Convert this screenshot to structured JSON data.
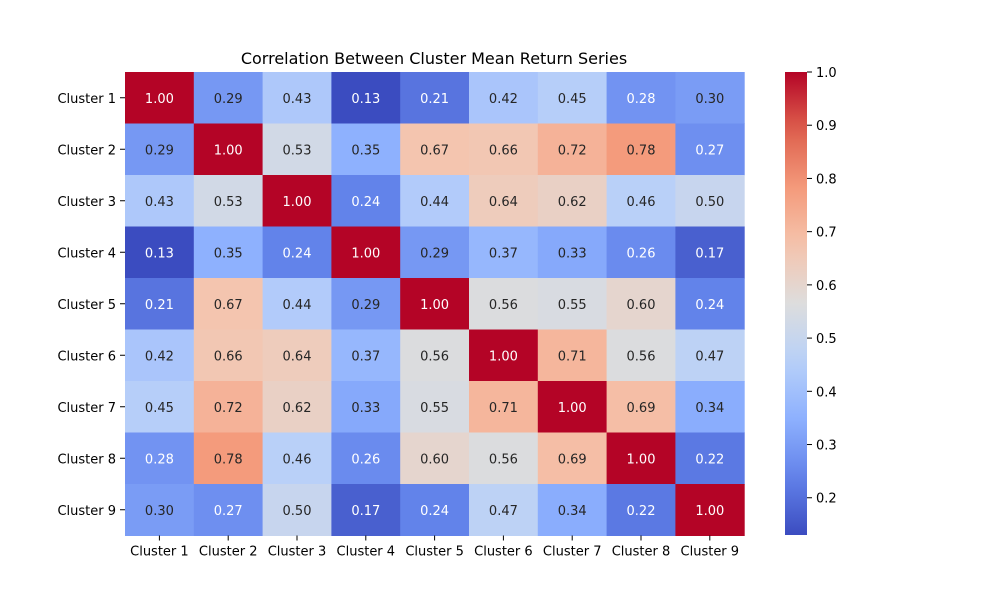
{
  "chart_data": {
    "type": "heatmap",
    "title": "Correlation Between Cluster Mean Return Series",
    "xlabel": "",
    "ylabel": "",
    "x_categories": [
      "Cluster 1",
      "Cluster 2",
      "Cluster 3",
      "Cluster 4",
      "Cluster 5",
      "Cluster 6",
      "Cluster 7",
      "Cluster 8",
      "Cluster 9"
    ],
    "y_categories": [
      "Cluster 1",
      "Cluster 2",
      "Cluster 3",
      "Cluster 4",
      "Cluster 5",
      "Cluster 6",
      "Cluster 7",
      "Cluster 8",
      "Cluster 9"
    ],
    "values": [
      [
        1.0,
        0.29,
        0.43,
        0.13,
        0.21,
        0.42,
        0.45,
        0.28,
        0.3
      ],
      [
        0.29,
        1.0,
        0.53,
        0.35,
        0.67,
        0.66,
        0.72,
        0.78,
        0.27
      ],
      [
        0.43,
        0.53,
        1.0,
        0.24,
        0.44,
        0.64,
        0.62,
        0.46,
        0.5
      ],
      [
        0.13,
        0.35,
        0.24,
        1.0,
        0.29,
        0.37,
        0.33,
        0.26,
        0.17
      ],
      [
        0.21,
        0.67,
        0.44,
        0.29,
        1.0,
        0.56,
        0.55,
        0.6,
        0.24
      ],
      [
        0.42,
        0.66,
        0.64,
        0.37,
        0.56,
        1.0,
        0.71,
        0.56,
        0.47
      ],
      [
        0.45,
        0.72,
        0.62,
        0.33,
        0.55,
        0.71,
        1.0,
        0.69,
        0.34
      ],
      [
        0.28,
        0.78,
        0.46,
        0.26,
        0.6,
        0.56,
        0.69,
        1.0,
        0.22
      ],
      [
        0.3,
        0.27,
        0.5,
        0.17,
        0.24,
        0.47,
        0.34,
        0.22,
        1.0
      ]
    ],
    "value_format": "0.00",
    "colormap": "coolwarm",
    "color_range": [
      0.13,
      1.0
    ],
    "colorbar_ticks": [
      "0.2",
      "0.3",
      "0.4",
      "0.5",
      "0.6",
      "0.7",
      "0.8",
      "0.9",
      "1.0"
    ],
    "grid": false,
    "legend": "colorbar-right"
  }
}
